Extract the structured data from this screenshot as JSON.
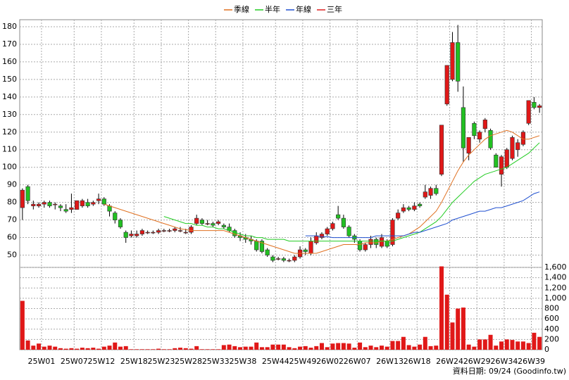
{
  "chart_data": {
    "type": "candlestick",
    "categories": [
      null,
      null,
      null,
      null,
      "25W01",
      null,
      null,
      null,
      null,
      null,
      "25W07",
      null,
      null,
      null,
      null,
      "25W12",
      null,
      null,
      null,
      null,
      null,
      "25W18",
      null,
      null,
      null,
      null,
      "25W23",
      null,
      null,
      null,
      null,
      "25W28",
      null,
      null,
      null,
      null,
      "25W33",
      null,
      null,
      null,
      null,
      "25W38",
      null,
      null,
      null,
      null,
      null,
      "25W44",
      null,
      null,
      null,
      null,
      "25W49",
      null,
      null,
      null,
      null,
      "26W02",
      null,
      null,
      null,
      null,
      "26W07",
      null,
      null,
      null,
      null,
      null,
      "26W13",
      null,
      null,
      null,
      null,
      "26W18",
      null,
      null,
      null,
      null,
      null,
      "26W24",
      null,
      null,
      null,
      null,
      "26W29",
      null,
      null,
      null,
      null,
      "26W34",
      null,
      null,
      null,
      null,
      "26W39",
      null
    ],
    "open": [
      77,
      89,
      78,
      78,
      79,
      80,
      79,
      78,
      76,
      76,
      76,
      78,
      80,
      79,
      81,
      82,
      78,
      74,
      70,
      63,
      61,
      61,
      62,
      63,
      63,
      63,
      64,
      64,
      64,
      64,
      63,
      63,
      68,
      70,
      68,
      68,
      68,
      67,
      66,
      64,
      61,
      60,
      59,
      58,
      58,
      53,
      49,
      48,
      48,
      47,
      47,
      49,
      53,
      51,
      57,
      60,
      62,
      65,
      73,
      71,
      66,
      61,
      58,
      53,
      56,
      59,
      55,
      58,
      56,
      71,
      75,
      77,
      76,
      79,
      83,
      84,
      88,
      96,
      136,
      150,
      171,
      134,
      108,
      125,
      116,
      122,
      121,
      107,
      96,
      100,
      105,
      110,
      113,
      125,
      137,
      134
    ],
    "high": [
      88,
      90,
      81,
      80,
      81,
      81,
      80,
      79,
      79,
      85,
      81,
      82,
      82,
      81,
      85,
      83,
      79,
      75,
      71,
      64,
      64,
      64,
      65,
      64,
      64,
      65,
      65,
      65,
      66,
      66,
      65,
      67,
      73,
      71,
      70,
      69,
      70,
      68,
      68,
      65,
      63,
      62,
      61,
      59,
      59,
      54,
      50,
      49,
      49,
      48,
      50,
      55,
      54,
      60,
      63,
      63,
      66,
      69,
      78,
      73,
      67,
      62,
      59,
      57,
      61,
      60,
      62,
      59,
      71,
      76,
      79,
      78,
      80,
      80,
      90,
      89,
      90,
      124,
      158,
      177,
      181,
      146,
      117,
      126,
      121,
      128,
      122,
      108,
      107,
      111,
      118,
      116,
      121,
      138,
      140,
      136
    ],
    "low": [
      70,
      79,
      76,
      77,
      77,
      77,
      76,
      75,
      74,
      74,
      76,
      77,
      77,
      78,
      79,
      78,
      72,
      68,
      65,
      57,
      60,
      60,
      61,
      62,
      62,
      62,
      63,
      63,
      63,
      63,
      62,
      62,
      67,
      67,
      67,
      66,
      67,
      65,
      63,
      60,
      58,
      57,
      56,
      52,
      51,
      49,
      46,
      47,
      46,
      46,
      46,
      48,
      50,
      50,
      56,
      59,
      61,
      64,
      70,
      65,
      60,
      57,
      52,
      52,
      54,
      54,
      54,
      54,
      55,
      70,
      74,
      75,
      75,
      77,
      82,
      82,
      84,
      95,
      135,
      149,
      143,
      103,
      104,
      116,
      114,
      120,
      110,
      100,
      89,
      99,
      104,
      106,
      112,
      124,
      133,
      131
    ],
    "close": [
      87,
      81,
      79,
      79,
      80,
      78,
      79,
      77,
      75,
      77,
      81,
      81,
      78,
      80,
      82,
      79,
      75,
      70,
      66,
      60,
      62,
      62,
      64,
      63,
      63,
      64,
      64,
      64,
      65,
      64,
      63,
      66,
      71,
      68,
      68,
      67,
      69,
      66,
      64,
      61,
      60,
      59,
      58,
      53,
      52,
      50,
      47,
      48,
      47,
      47,
      49,
      53,
      52,
      58,
      61,
      62,
      65,
      68,
      71,
      66,
      61,
      59,
      53,
      56,
      59,
      56,
      60,
      55,
      70,
      74,
      77,
      76,
      78,
      78,
      86,
      88,
      85,
      124,
      158,
      171,
      149,
      111,
      117,
      118,
      120,
      127,
      111,
      100,
      106,
      110,
      117,
      114,
      120,
      138,
      134,
      135
    ],
    "ylim": [
      43,
      184
    ],
    "yticks": [
      50,
      60,
      70,
      80,
      90,
      100,
      110,
      120,
      130,
      140,
      150,
      160,
      170,
      180
    ],
    "grid": true,
    "series": [
      {
        "name": "季線",
        "color": "#e07020",
        "values": [
          null,
          null,
          null,
          null,
          null,
          null,
          null,
          null,
          null,
          null,
          null,
          null,
          null,
          null,
          null,
          79,
          78,
          77,
          76,
          75,
          74,
          73,
          72,
          71,
          70,
          69,
          68,
          67,
          66,
          65,
          64.5,
          64,
          64,
          64,
          64,
          64,
          64,
          64,
          63,
          62,
          61,
          60,
          59,
          58,
          57,
          56,
          55,
          54,
          53,
          52,
          51,
          51,
          51,
          51,
          51,
          52,
          53,
          54,
          55,
          56,
          56,
          56,
          56,
          57,
          57,
          57,
          58,
          58,
          59,
          60,
          61,
          62,
          64,
          66,
          69,
          72,
          75,
          80,
          86,
          92,
          98,
          103,
          107,
          110,
          113,
          116,
          118,
          119,
          120,
          121,
          120,
          118,
          116,
          116,
          117,
          118
        ]
      },
      {
        "name": "半年",
        "color": "#22cc22",
        "values": [
          null,
          null,
          null,
          null,
          null,
          null,
          null,
          null,
          null,
          null,
          null,
          null,
          null,
          null,
          null,
          null,
          null,
          null,
          null,
          null,
          null,
          null,
          null,
          null,
          null,
          null,
          72,
          71,
          70,
          69,
          68,
          68,
          67,
          67,
          66,
          66,
          65,
          65,
          64,
          63,
          62,
          61,
          61,
          60,
          60,
          59,
          59,
          59,
          59,
          58,
          58,
          58,
          58,
          58,
          58,
          58,
          58,
          58,
          58,
          58,
          58,
          58,
          58,
          58,
          58,
          58,
          58,
          58,
          58,
          59,
          60,
          61,
          62,
          63,
          65,
          67,
          69,
          72,
          76,
          80,
          83,
          86,
          89,
          92,
          94,
          96,
          97,
          98,
          99,
          100,
          102,
          104,
          106,
          108,
          111,
          114
        ]
      },
      {
        "name": "年線",
        "color": "#2050d0",
        "values": [
          null,
          null,
          null,
          null,
          null,
          null,
          null,
          null,
          null,
          null,
          null,
          null,
          null,
          null,
          null,
          null,
          null,
          null,
          null,
          null,
          null,
          null,
          null,
          null,
          null,
          null,
          null,
          null,
          null,
          null,
          null,
          null,
          null,
          null,
          null,
          null,
          null,
          null,
          null,
          null,
          null,
          null,
          null,
          null,
          null,
          null,
          null,
          null,
          null,
          null,
          null,
          null,
          61,
          61,
          61,
          60.5,
          60.5,
          60,
          60,
          60,
          60,
          60,
          60,
          60,
          60,
          61,
          61,
          61,
          61,
          61,
          61,
          62,
          63,
          63,
          64,
          65,
          66,
          67,
          68,
          70,
          71,
          72,
          73,
          74,
          75,
          75,
          76,
          77,
          77,
          78,
          79,
          80,
          81,
          83,
          85,
          86
        ]
      },
      {
        "name": "三年",
        "color": "#dd2020",
        "values": [
          null,
          null,
          null,
          null,
          null,
          null,
          null,
          null,
          null,
          null,
          null,
          null,
          null,
          null,
          null,
          null,
          null,
          null,
          null,
          null,
          null,
          null,
          null,
          null,
          null,
          null,
          null,
          null,
          null,
          null,
          null,
          null,
          null,
          null,
          null,
          null,
          null,
          null,
          null,
          null,
          null,
          null,
          null,
          null,
          null,
          null,
          null,
          null,
          null,
          null,
          null,
          null,
          null,
          null,
          null,
          null,
          null,
          null,
          null,
          null,
          null,
          null,
          null,
          null,
          null,
          null,
          null,
          null,
          null,
          null,
          null,
          null,
          null,
          null,
          null,
          null,
          null,
          null,
          null,
          null,
          null,
          null,
          null,
          null,
          null,
          null,
          null,
          null,
          null,
          null,
          null,
          null,
          null,
          null,
          null,
          null
        ]
      }
    ],
    "up_color": "#e01818",
    "down_color": "#22c022",
    "volume": {
      "color": "#e01818",
      "values": [
        950,
        180,
        80,
        120,
        60,
        80,
        60,
        30,
        20,
        30,
        20,
        40,
        30,
        40,
        20,
        60,
        80,
        140,
        60,
        70,
        10,
        10,
        10,
        10,
        10,
        20,
        10,
        10,
        30,
        40,
        30,
        20,
        70,
        10,
        10,
        10,
        10,
        90,
        100,
        70,
        50,
        60,
        60,
        140,
        50,
        50,
        100,
        100,
        100,
        50,
        30,
        60,
        70,
        40,
        70,
        130,
        50,
        120,
        130,
        130,
        120,
        40,
        140,
        50,
        80,
        50,
        80,
        60,
        170,
        170,
        250,
        90,
        60,
        100,
        250,
        70,
        80,
        1620,
        1070,
        530,
        800,
        820,
        100,
        60,
        200,
        200,
        290,
        80,
        160,
        200,
        190,
        160,
        160,
        130,
        330,
        250
      ],
      "ylim": [
        0,
        1600
      ],
      "yticks": [
        0,
        200,
        400,
        600,
        800,
        {
          "value": 1000,
          "label": "1,000"
        },
        {
          "value": 1200,
          "label": "1,200"
        },
        {
          "value": 1400,
          "label": "1,400"
        },
        {
          "value": 1600,
          "label": "1,600"
        }
      ]
    },
    "footer": "資料日期: 09/24  (Goodinfo.tw)"
  }
}
